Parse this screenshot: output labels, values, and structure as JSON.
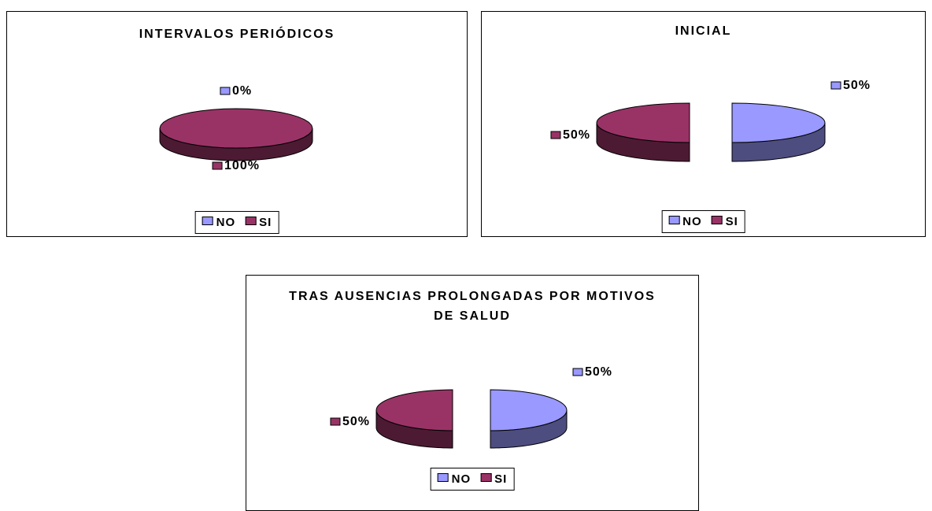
{
  "chart_data": [
    {
      "type": "pie",
      "title": "INTERVALOS PERIÓDICOS",
      "categories": [
        "NO",
        "SI"
      ],
      "values": [
        0,
        100
      ],
      "value_labels": [
        "0%",
        "100%"
      ],
      "colors": [
        "#9999ff",
        "#993366"
      ],
      "exploded": false,
      "legend": "bottom"
    },
    {
      "type": "pie",
      "title": "INICIAL",
      "categories": [
        "NO",
        "SI"
      ],
      "values": [
        50,
        50
      ],
      "value_labels": [
        "50%",
        "50%"
      ],
      "colors": [
        "#9999ff",
        "#993366"
      ],
      "exploded": true,
      "legend": "bottom"
    },
    {
      "type": "pie",
      "title": "TRAS AUSENCIAS PROLONGADAS POR MOTIVOS DE SALUD",
      "categories": [
        "NO",
        "SI"
      ],
      "values": [
        50,
        50
      ],
      "value_labels": [
        "50%",
        "50%"
      ],
      "colors": [
        "#9999ff",
        "#993366"
      ],
      "exploded": true,
      "legend": "bottom"
    }
  ]
}
